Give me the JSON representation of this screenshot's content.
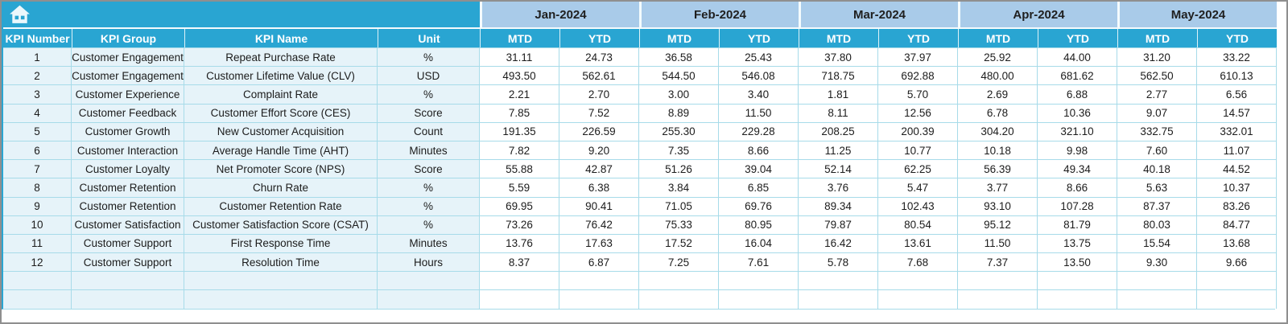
{
  "theme": {
    "header_cyan": "#29a5d2",
    "month_band_blue": "#a9cbe9",
    "left_column_bg": "#e6f3f9",
    "gridline": "#a7dbe9",
    "window_border": "#8f8f8f",
    "header_text": "#ffffff",
    "body_text": "#1c1c1c"
  },
  "icons": {
    "home": "home-icon"
  },
  "columns": {
    "left_headers": [
      "KPI Number",
      "KPI Group",
      "KPI Name",
      "Unit"
    ],
    "months": [
      "Jan-2024",
      "Feb-2024",
      "Mar-2024",
      "Apr-2024",
      "May-2024"
    ],
    "sub_headers": [
      "MTD",
      "YTD"
    ]
  },
  "empty_row_count": 2,
  "rows": [
    {
      "number": "1",
      "group": "Customer Engagement",
      "name": "Repeat Purchase Rate",
      "unit": "%",
      "values": [
        "31.11",
        "24.73",
        "36.58",
        "25.43",
        "37.80",
        "37.97",
        "25.92",
        "44.00",
        "31.20",
        "33.22"
      ]
    },
    {
      "number": "2",
      "group": "Customer Engagement",
      "name": "Customer Lifetime Value (CLV)",
      "unit": "USD",
      "values": [
        "493.50",
        "562.61",
        "544.50",
        "546.08",
        "718.75",
        "692.88",
        "480.00",
        "681.62",
        "562.50",
        "610.13"
      ]
    },
    {
      "number": "3",
      "group": "Customer Experience",
      "name": "Complaint Rate",
      "unit": "%",
      "values": [
        "2.21",
        "2.70",
        "3.00",
        "3.40",
        "1.81",
        "5.70",
        "2.69",
        "6.88",
        "2.77",
        "6.56"
      ]
    },
    {
      "number": "4",
      "group": "Customer Feedback",
      "name": "Customer Effort Score (CES)",
      "unit": "Score",
      "values": [
        "7.85",
        "7.52",
        "8.89",
        "11.50",
        "8.11",
        "12.56",
        "6.78",
        "10.36",
        "9.07",
        "14.57"
      ]
    },
    {
      "number": "5",
      "group": "Customer Growth",
      "name": "New Customer Acquisition",
      "unit": "Count",
      "values": [
        "191.35",
        "226.59",
        "255.30",
        "229.28",
        "208.25",
        "200.39",
        "304.20",
        "321.10",
        "332.75",
        "332.01"
      ]
    },
    {
      "number": "6",
      "group": "Customer Interaction",
      "name": "Average Handle Time (AHT)",
      "unit": "Minutes",
      "values": [
        "7.82",
        "9.20",
        "7.35",
        "8.66",
        "11.25",
        "10.77",
        "10.18",
        "9.98",
        "7.60",
        "11.07"
      ]
    },
    {
      "number": "7",
      "group": "Customer Loyalty",
      "name": "Net Promoter Score (NPS)",
      "unit": "Score",
      "values": [
        "55.88",
        "42.87",
        "51.26",
        "39.04",
        "52.14",
        "62.25",
        "56.39",
        "49.34",
        "40.18",
        "44.52"
      ]
    },
    {
      "number": "8",
      "group": "Customer Retention",
      "name": "Churn Rate",
      "unit": "%",
      "values": [
        "5.59",
        "6.38",
        "3.84",
        "6.85",
        "3.76",
        "5.47",
        "3.77",
        "8.66",
        "5.63",
        "10.37"
      ]
    },
    {
      "number": "9",
      "group": "Customer Retention",
      "name": "Customer Retention Rate",
      "unit": "%",
      "values": [
        "69.95",
        "90.41",
        "71.05",
        "69.76",
        "89.34",
        "102.43",
        "93.10",
        "107.28",
        "87.37",
        "83.26"
      ]
    },
    {
      "number": "10",
      "group": "Customer Satisfaction",
      "name": "Customer Satisfaction Score (CSAT)",
      "unit": "%",
      "values": [
        "73.26",
        "76.42",
        "75.33",
        "80.95",
        "79.87",
        "80.54",
        "95.12",
        "81.79",
        "80.03",
        "84.77"
      ]
    },
    {
      "number": "11",
      "group": "Customer Support",
      "name": "First Response Time",
      "unit": "Minutes",
      "values": [
        "13.76",
        "17.63",
        "17.52",
        "16.04",
        "16.42",
        "13.61",
        "11.50",
        "13.75",
        "15.54",
        "13.68"
      ]
    },
    {
      "number": "12",
      "group": "Customer Support",
      "name": "Resolution Time",
      "unit": "Hours",
      "values": [
        "8.37",
        "6.87",
        "7.25",
        "7.61",
        "5.78",
        "7.68",
        "7.37",
        "13.50",
        "9.30",
        "9.66"
      ]
    }
  ]
}
